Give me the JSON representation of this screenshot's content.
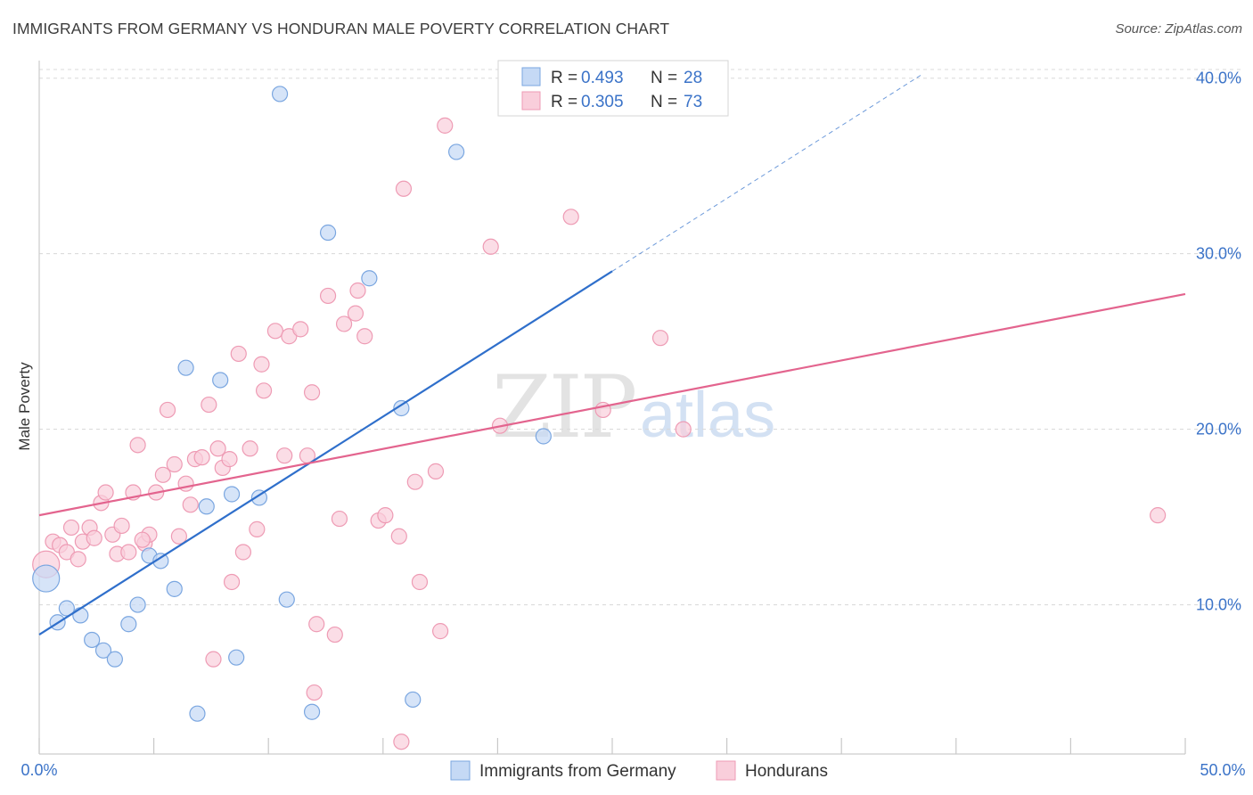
{
  "header": {
    "title": "IMMIGRANTS FROM GERMANY VS HONDURAN MALE POVERTY CORRELATION CHART",
    "source": "Source: ZipAtlas.com"
  },
  "watermark": {
    "zip": "ZIP",
    "atlas": "atlas"
  },
  "legend": {
    "r_label": "R =",
    "n_label": "N =",
    "rows": [
      {
        "r": "0.493",
        "n": "28"
      },
      {
        "r": "0.305",
        "n": "73"
      }
    ]
  },
  "colors": {
    "germany_fill": "#c5d9f5",
    "germany_stroke": "#7aa6e0",
    "germany_line": "#2f6fcb",
    "honduran_fill": "#f9cedb",
    "honduran_stroke": "#ee9bb4",
    "honduran_line": "#e3648e",
    "tick_text": "#3b73c8",
    "grid": "#d8d8d8"
  },
  "chart_data": {
    "type": "scatter",
    "title": "IMMIGRANTS FROM GERMANY VS HONDURAN MALE POVERTY CORRELATION CHART",
    "xlabel": "",
    "ylabel": "Male Poverty",
    "xlim": [
      0,
      50
    ],
    "ylim": [
      1.5,
      41
    ],
    "x_tick_labels": [
      "0.0%",
      "50.0%"
    ],
    "y_ticks": [
      10,
      20,
      30,
      40
    ],
    "y_tick_labels": [
      "10.0%",
      "20.0%",
      "30.0%",
      "40.0%"
    ],
    "grid": true,
    "legend_position": "top-center",
    "series": [
      {
        "name": "Immigrants from Germany",
        "r": 0.493,
        "n": 28,
        "trend": {
          "x": [
            0,
            25
          ],
          "y": [
            8.3,
            29.0
          ],
          "dashed_to": [
            38.5,
            40.2
          ]
        },
        "points": [
          [
            0.3,
            11.5,
            "large"
          ],
          [
            0.8,
            9.0
          ],
          [
            1.2,
            9.8
          ],
          [
            1.8,
            9.4
          ],
          [
            2.3,
            8.0
          ],
          [
            2.8,
            7.4
          ],
          [
            3.3,
            6.9
          ],
          [
            3.9,
            8.9
          ],
          [
            4.3,
            10.0
          ],
          [
            4.8,
            12.8
          ],
          [
            5.3,
            12.5
          ],
          [
            5.9,
            10.9
          ],
          [
            6.4,
            23.5
          ],
          [
            6.9,
            3.8
          ],
          [
            7.3,
            15.6
          ],
          [
            7.9,
            22.8
          ],
          [
            8.4,
            16.3
          ],
          [
            8.6,
            7.0
          ],
          [
            9.6,
            16.1
          ],
          [
            10.5,
            39.1
          ],
          [
            10.8,
            10.3
          ],
          [
            11.9,
            3.9
          ],
          [
            12.6,
            31.2
          ],
          [
            14.4,
            28.6
          ],
          [
            15.8,
            21.2
          ],
          [
            16.3,
            4.6
          ],
          [
            18.2,
            35.8
          ],
          [
            22.0,
            19.6
          ]
        ]
      },
      {
        "name": "Hondurans",
        "r": 0.305,
        "n": 73,
        "trend": {
          "x": [
            0,
            50
          ],
          "y": [
            15.1,
            27.7
          ]
        },
        "points": [
          [
            0.3,
            12.3,
            "large"
          ],
          [
            0.6,
            13.6
          ],
          [
            0.9,
            13.4
          ],
          [
            1.2,
            13.0
          ],
          [
            1.4,
            14.4
          ],
          [
            1.7,
            12.6
          ],
          [
            1.9,
            13.6
          ],
          [
            2.2,
            14.4
          ],
          [
            2.4,
            13.8
          ],
          [
            2.7,
            15.8
          ],
          [
            2.9,
            16.4
          ],
          [
            3.2,
            14.0
          ],
          [
            3.4,
            12.9
          ],
          [
            3.6,
            14.5
          ],
          [
            3.9,
            13.0
          ],
          [
            4.1,
            16.4
          ],
          [
            4.3,
            19.1
          ],
          [
            4.6,
            13.5
          ],
          [
            4.8,
            14.0
          ],
          [
            5.1,
            16.4
          ],
          [
            5.4,
            17.4
          ],
          [
            5.6,
            21.1
          ],
          [
            5.9,
            18.0
          ],
          [
            6.1,
            13.9
          ],
          [
            6.4,
            16.9
          ],
          [
            6.6,
            15.7
          ],
          [
            6.8,
            18.3
          ],
          [
            7.1,
            18.4
          ],
          [
            7.4,
            21.4
          ],
          [
            7.6,
            6.9
          ],
          [
            7.8,
            18.9
          ],
          [
            8.0,
            17.8
          ],
          [
            8.3,
            18.3
          ],
          [
            8.4,
            11.3
          ],
          [
            8.7,
            24.3
          ],
          [
            8.9,
            13.0
          ],
          [
            9.2,
            18.9
          ],
          [
            9.5,
            14.3
          ],
          [
            9.7,
            23.7
          ],
          [
            9.8,
            22.2
          ],
          [
            10.3,
            25.6
          ],
          [
            10.7,
            18.5
          ],
          [
            10.9,
            25.3
          ],
          [
            11.4,
            25.7
          ],
          [
            11.7,
            18.5
          ],
          [
            11.9,
            22.1
          ],
          [
            12.1,
            8.9
          ],
          [
            12.6,
            27.6
          ],
          [
            12.9,
            8.3
          ],
          [
            13.1,
            14.9
          ],
          [
            13.3,
            26.0
          ],
          [
            13.8,
            26.6
          ],
          [
            13.9,
            27.9
          ],
          [
            14.2,
            25.3
          ],
          [
            14.8,
            14.8
          ],
          [
            15.1,
            15.1
          ],
          [
            15.7,
            13.9
          ],
          [
            15.8,
            2.2
          ],
          [
            15.9,
            33.7
          ],
          [
            16.4,
            17.0
          ],
          [
            16.6,
            11.3
          ],
          [
            17.3,
            17.6
          ],
          [
            17.5,
            8.5
          ],
          [
            17.7,
            37.3
          ],
          [
            19.7,
            30.4
          ],
          [
            20.1,
            20.2
          ],
          [
            23.2,
            32.1
          ],
          [
            24.6,
            21.1
          ],
          [
            27.1,
            25.2
          ],
          [
            28.1,
            20.0
          ],
          [
            48.8,
            15.1
          ],
          [
            12.0,
            5.0
          ],
          [
            4.5,
            13.7
          ]
        ]
      }
    ]
  },
  "bottom_legend": {
    "items": [
      {
        "label": "Immigrants from Germany"
      },
      {
        "label": "Hondurans"
      }
    ]
  }
}
